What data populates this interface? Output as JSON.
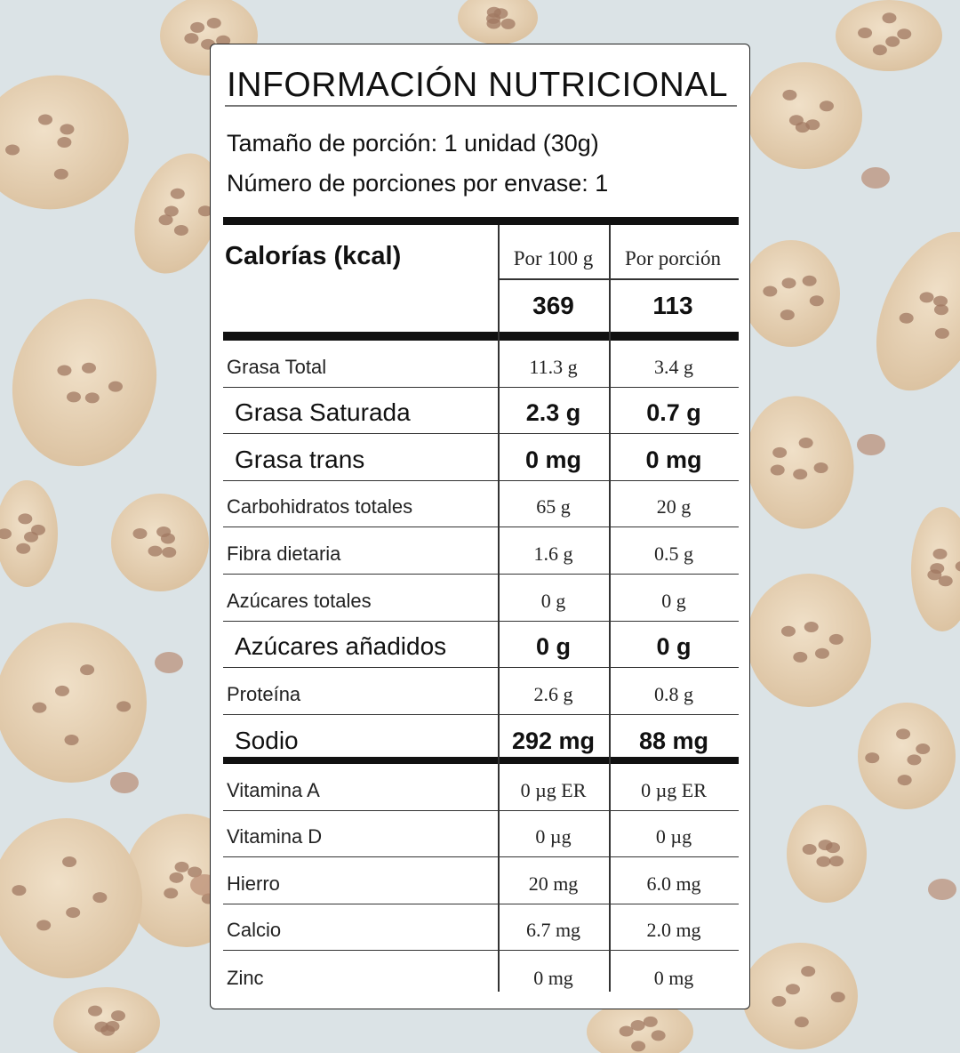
{
  "label": {
    "title": "INFORMACIÓN NUTRICIONAL",
    "serving_size": "Tamaño de porción: 1 unidad (30g)",
    "servings_per_container": "Número de porciones por envase: 1",
    "calories_label": "Calorías (kcal)",
    "col_per_100g": "Por 100 g",
    "col_per_serving": "Por porción",
    "calories_per_100g": "369",
    "calories_per_serving": "113"
  },
  "nutrients": [
    {
      "name": "Grasa Total",
      "per_100g": "11.3 g",
      "per_serving": "3.4 g",
      "emphasis": false
    },
    {
      "name": "Grasa Saturada",
      "per_100g": "2.3 g",
      "per_serving": "0.7 g",
      "emphasis": true
    },
    {
      "name": "Grasa trans",
      "per_100g": "0 mg",
      "per_serving": "0 mg",
      "emphasis": true
    },
    {
      "name": "Carbohidratos totales",
      "per_100g": "65 g",
      "per_serving": "20 g",
      "emphasis": false
    },
    {
      "name": "Fibra dietaria",
      "per_100g": "1.6 g",
      "per_serving": "0.5 g",
      "emphasis": false
    },
    {
      "name": "Azúcares totales",
      "per_100g": "0 g",
      "per_serving": "0 g",
      "emphasis": false
    },
    {
      "name": "Azúcares añadidos",
      "per_100g": "0 g",
      "per_serving": "0 g",
      "emphasis": true
    },
    {
      "name": "Proteína",
      "per_100g": "2.6 g",
      "per_serving": "0.8 g",
      "emphasis": false
    },
    {
      "name": "Sodio",
      "per_100g": "292 mg",
      "per_serving": "88 mg",
      "emphasis": true
    }
  ],
  "micronutrients": [
    {
      "name": "Vitamina A",
      "per_100g": "0 µg ER",
      "per_serving": "0 µg ER"
    },
    {
      "name": "Vitamina D",
      "per_100g": "0 µg",
      "per_serving": "0 µg"
    },
    {
      "name": "Hierro",
      "per_100g": "20 mg",
      "per_serving": "6.0 mg"
    },
    {
      "name": "Calcio",
      "per_100g": "6.7 mg",
      "per_serving": "2.0 mg"
    },
    {
      "name": "Zinc",
      "per_100g": "0 mg",
      "per_serving": "0 mg"
    }
  ],
  "colors": {
    "background": "#dbe3e6",
    "cookie": "#e8d4b8",
    "chip": "#a07862",
    "card": "#ffffff",
    "ink": "#111111"
  }
}
